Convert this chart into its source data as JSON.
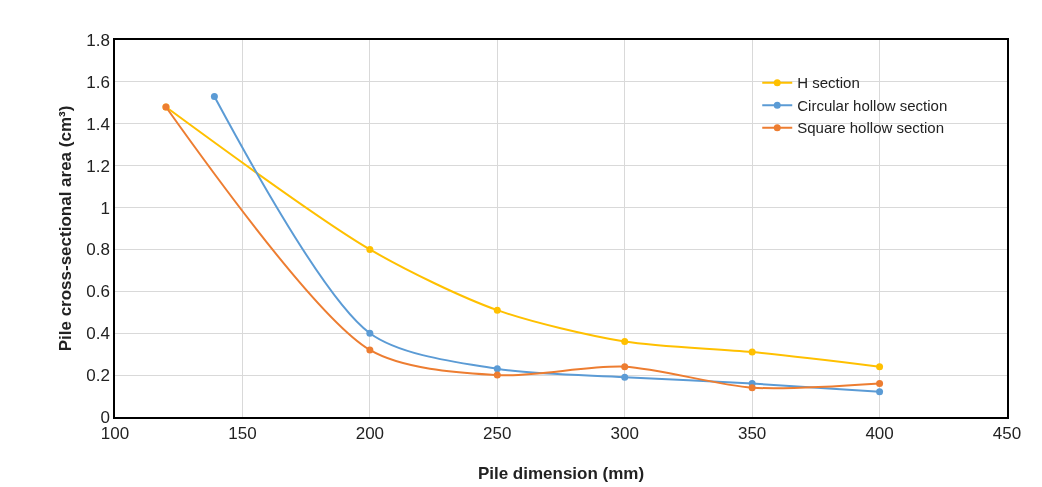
{
  "chart_data": {
    "type": "line",
    "xlabel": "Pile dimension (mm)",
    "ylabel": "Pile cross-sectional area (cm³)",
    "series": [
      {
        "name": "H section",
        "color": "#ffc000",
        "x": [
          120,
          200,
          250,
          300,
          350,
          400
        ],
        "values": [
          1.48,
          0.8,
          0.51,
          0.36,
          0.31,
          0.24
        ]
      },
      {
        "name": "Circular hollow section",
        "color": "#5b9bd5",
        "x": [
          139,
          200,
          250,
          300,
          350,
          400
        ],
        "values": [
          1.53,
          0.4,
          0.23,
          0.19,
          0.16,
          0.12
        ]
      },
      {
        "name": "Square hollow section",
        "color": "#ed7d31",
        "x": [
          120,
          200,
          250,
          300,
          350,
          400
        ],
        "values": [
          1.48,
          0.32,
          0.2,
          0.24,
          0.14,
          0.16
        ]
      }
    ],
    "xlim": [
      100,
      450
    ],
    "xticks": [
      100,
      150,
      200,
      250,
      300,
      350,
      400,
      450
    ],
    "ylim": [
      0,
      1.8
    ],
    "yticks": [
      0,
      0.2,
      0.4,
      0.6,
      0.8,
      1.0,
      1.2,
      1.4,
      1.6,
      1.8
    ],
    "grid": true,
    "legend": "top right",
    "marker": "circle",
    "line_style": "solid"
  }
}
